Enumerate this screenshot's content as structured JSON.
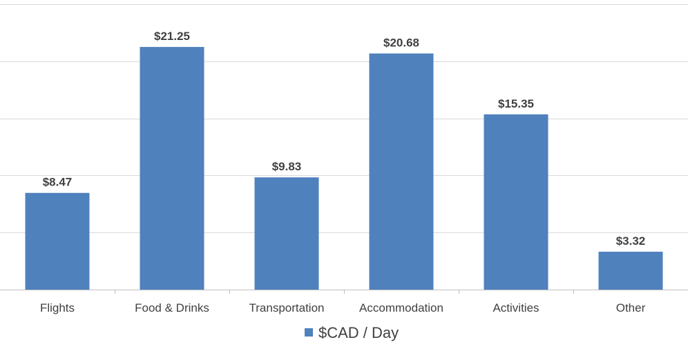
{
  "chart_data": {
    "type": "bar",
    "categories": [
      "Flights",
      "Food & Drinks",
      "Transportation",
      "Accommodation",
      "Activities",
      "Other"
    ],
    "series": [
      {
        "name": "$CAD / Day",
        "values": [
          8.47,
          21.25,
          9.83,
          20.68,
          15.35,
          3.32
        ],
        "value_labels": [
          "$8.47",
          "$21.25",
          "$9.83",
          "$20.68",
          "$15.35",
          "$3.32"
        ],
        "color": "#4f81bd"
      }
    ],
    "ylim": [
      0,
      25
    ],
    "y_gridline_step": 5,
    "y_tick_labels_visible": false,
    "grid": true,
    "legend": "bottom",
    "colors": {
      "bar": "#4f81bd",
      "grid": "#d9d9d9",
      "text": "#404040"
    }
  }
}
